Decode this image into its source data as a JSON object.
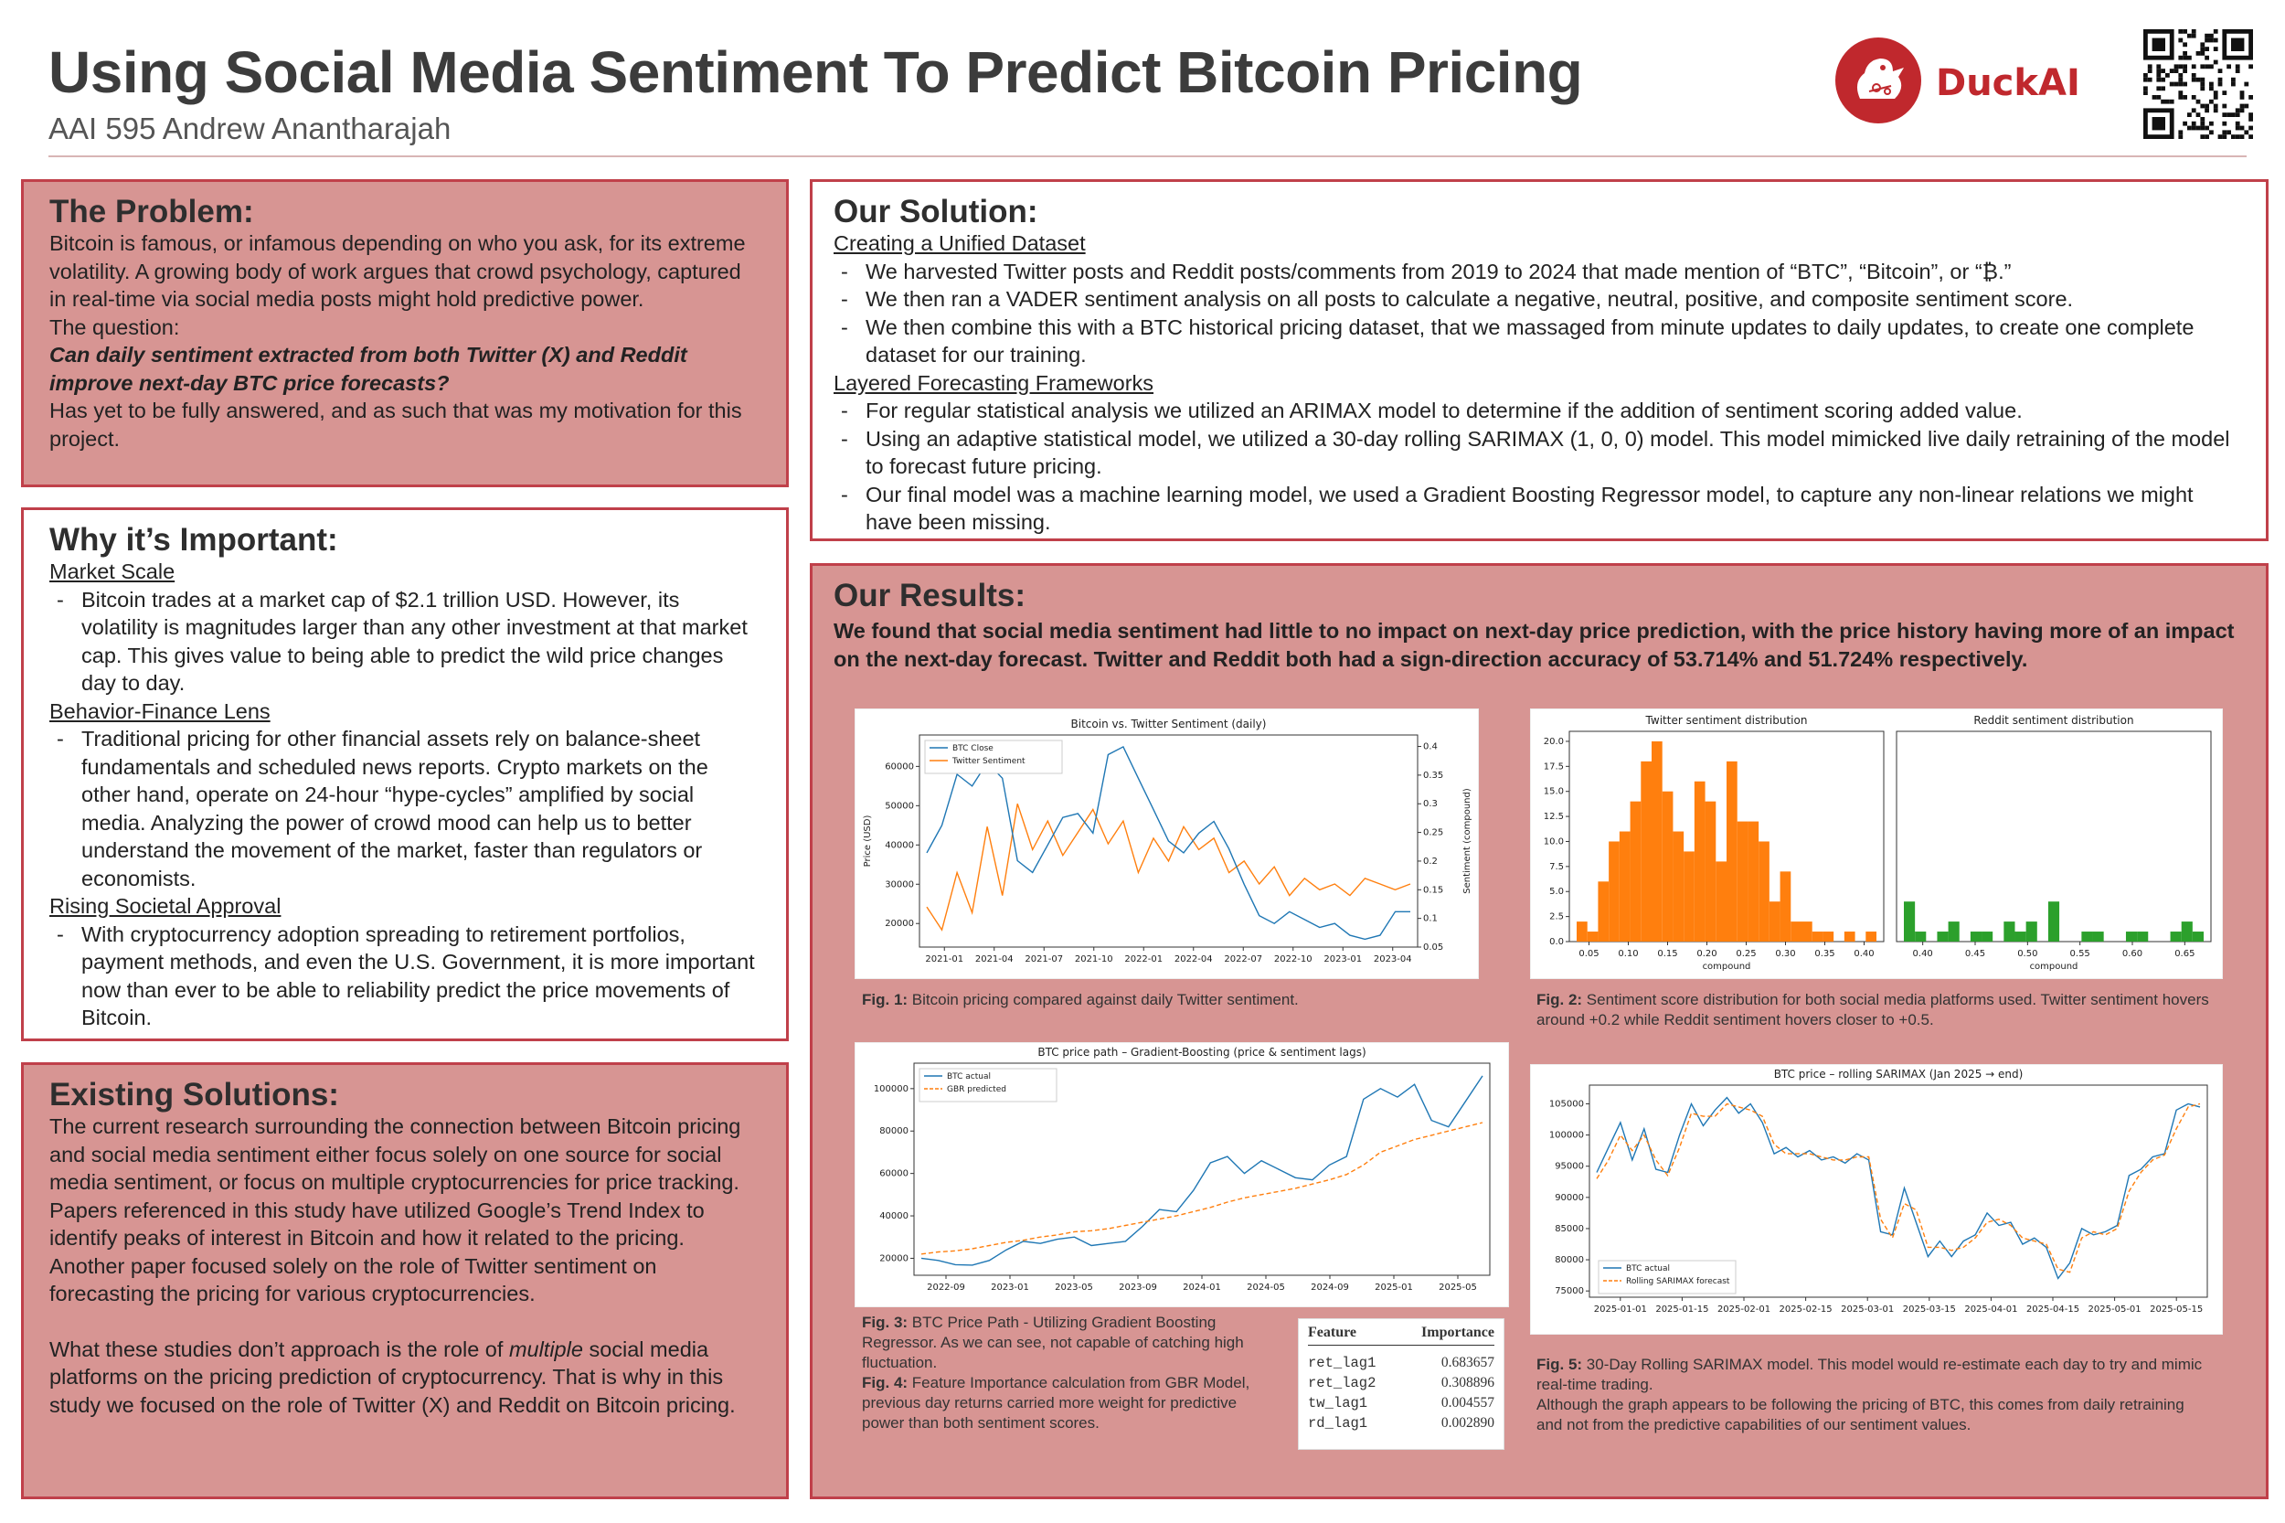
{
  "header": {
    "title": "Using Social Media Sentiment To Predict Bitcoin Pricing",
    "subtitle": "AAI 595 Andrew Anantharajah",
    "logo_text": "DuckAI"
  },
  "problem": {
    "title": "The Problem:",
    "p1": "Bitcoin is famous, or infamous depending on who you ask, for its extreme volatility. A growing body of work argues that crowd psychology, captured in real-time via social media posts might hold predictive power.",
    "p2": "The question:",
    "p3": "Can daily sentiment extracted from both Twitter (X) and Reddit improve next-day BTC price forecasts?",
    "p4": "Has yet to be fully answered, and as such that was my motivation for this project."
  },
  "important": {
    "title": "Why it’s Important:",
    "h1": "Market Scale",
    "b1": "Bitcoin trades at a market cap of $2.1 trillion USD. However, its volatility is magnitudes larger than any other investment at that market cap. This gives value to being able to predict the wild price changes day to day.",
    "h2": "Behavior-Finance Lens",
    "b2": "Traditional pricing for other financial assets rely on balance-sheet fundamentals and scheduled news reports. Crypto markets on the other hand, operate on 24-hour “hype-cycles” amplified by social media. Analyzing the power of crowd mood can help us to better understand the movement of the market, faster than regulators or economists.",
    "h3": "Rising Societal Approval",
    "b3": "With cryptocurrency adoption spreading to retirement portfolios, payment methods, and even the U.S. Government, it is more important now than ever to be able to reliability predict the price movements of Bitcoin."
  },
  "existing": {
    "title": "Existing Solutions:",
    "p1": "The current research surrounding the connection between Bitcoin pricing and social media sentiment either focus solely on one source for social media sentiment, or focus on multiple cryptocurrencies for price tracking.",
    "p2": "Papers referenced in this study have utilized Google’s Trend Index to identify peaks of interest in Bitcoin and how it related to the pricing. Another paper focused solely on the role of Twitter sentiment on forecasting the pricing for various cryptocurrencies.",
    "p3a": "What these studies don’t approach is the role of ",
    "p3b": "multiple",
    "p3c": " social media platforms on the pricing prediction of cryptocurrency. That is why in this study we focused on the role of Twitter (X) and Reddit on Bitcoin pricing."
  },
  "solution": {
    "title": "Our Solution:",
    "h1": "Creating a Unified Dataset",
    "b1": "We harvested Twitter posts and Reddit posts/comments from 2019 to 2024 that made mention of “BTC”, “Bitcoin”, or “₿.”",
    "b2": "We then ran a VADER sentiment analysis on all posts to calculate a negative, neutral, positive, and composite sentiment score.",
    "b3": "We then combine this with a BTC historical pricing dataset, that we massaged from minute updates to daily updates, to create one complete dataset for our training.",
    "h2": "Layered Forecasting Frameworks",
    "b4": "For regular statistical analysis we utilized an ARIMAX model to determine if the addition of sentiment scoring added value.",
    "b5": "Using an adaptive statistical model, we utilized a 30-day rolling SARIMAX (1, 0, 0) model. This model mimicked live daily retraining of the model to forecast future pricing.",
    "b6": "Our final model was a machine learning model, we used a Gradient Boosting Regressor model, to capture any non-linear relations we might have been missing."
  },
  "results": {
    "title": "Our Results:",
    "summary": "We found that social media sentiment had little to no impact on next-day price prediction, with the price history having more of an impact on the next-day forecast. Twitter and Reddit both had a sign-direction accuracy of 53.714% and 51.724% respectively."
  },
  "captions": {
    "f1_label": "Fig. 1:",
    "f1": " Bitcoin pricing compared against daily Twitter sentiment.",
    "f2_label": "Fig. 2:",
    "f2": " Sentiment score distribution for both social media platforms used. Twitter sentiment hovers around +0.2 while Reddit sentiment hovers closer to +0.5.",
    "f3_label": "Fig. 3:",
    "f3": "  BTC Price Path - Utilizing Gradient Boosting Regressor. As we can see, not capable of catching high fluctuation.",
    "f4_label": "Fig. 4:",
    "f4": " Feature Importance calculation from GBR Model, previous day returns carried more weight for predictive power than both sentiment scores.",
    "f5_label": "Fig. 5:",
    "f5": " 30-Day Rolling SARIMAX model. This model would re-estimate each day to try and mimic real-time trading.",
    "f5b": "Although the graph appears to be following the pricing of BTC, this comes from daily retraining and not from the predictive capabilities of our sentiment values."
  },
  "chart_data": [
    {
      "type": "line",
      "title": "Bitcoin vs. Twitter Sentiment (daily)",
      "ylabel": "Price (USD)",
      "y2label": "Sentiment (compound)",
      "x_ticks": [
        "2021-01",
        "2021-04",
        "2021-07",
        "2021-10",
        "2022-01",
        "2022-04",
        "2022-07",
        "2022-10",
        "2023-01",
        "2023-04"
      ],
      "y_ticks": [
        20000,
        30000,
        40000,
        50000,
        60000
      ],
      "y2_ticks": [
        0.05,
        0.1,
        0.15,
        0.2,
        0.25,
        0.3,
        0.35,
        0.4
      ],
      "series": [
        {
          "name": "BTC Close",
          "color": "#1f77b4",
          "values": [
            38000,
            45000,
            58000,
            55000,
            61000,
            57000,
            36000,
            33000,
            40000,
            47000,
            48000,
            43000,
            63000,
            65000,
            57000,
            49000,
            41000,
            38000,
            43000,
            46000,
            39000,
            30000,
            22000,
            20000,
            23000,
            21000,
            19000,
            20000,
            17000,
            16000,
            17000,
            23000,
            23000
          ]
        },
        {
          "name": "Twitter Sentiment",
          "color": "#ff7f0e",
          "values": [
            0.12,
            0.08,
            0.18,
            0.11,
            0.26,
            0.14,
            0.3,
            0.22,
            0.27,
            0.21,
            0.25,
            0.29,
            0.23,
            0.27,
            0.18,
            0.24,
            0.2,
            0.26,
            0.22,
            0.24,
            0.18,
            0.2,
            0.16,
            0.19,
            0.14,
            0.17,
            0.15,
            0.16,
            0.14,
            0.17,
            0.16,
            0.15,
            0.16
          ]
        }
      ]
    },
    {
      "type": "bar",
      "title": "Twitter sentiment distribution",
      "xlabel": "compound",
      "x_ticks": [
        "0.05",
        "0.10",
        "0.15",
        "0.20",
        "0.25",
        "0.30",
        "0.35",
        "0.40"
      ],
      "y_ticks": [
        "0.0",
        "2.5",
        "5.0",
        "7.5",
        "10.0",
        "12.5",
        "15.0",
        "17.5",
        "20.0"
      ],
      "color": "#ff7f0e",
      "values": [
        2,
        1,
        6,
        10,
        11,
        14,
        18,
        20,
        15,
        11,
        9,
        16,
        14,
        8,
        18,
        12,
        12,
        10,
        4,
        7,
        2,
        2,
        1,
        1,
        0,
        1,
        0,
        1
      ]
    },
    {
      "type": "bar",
      "title": "Reddit sentiment distribution",
      "xlabel": "compound",
      "x_ticks": [
        "0.40",
        "0.45",
        "0.50",
        "0.55",
        "0.60",
        "0.65"
      ],
      "color": "#2ca02c",
      "values": [
        4,
        1,
        0,
        1,
        2,
        0,
        1,
        1,
        0,
        2,
        1,
        2,
        0,
        4,
        0,
        0,
        1,
        1,
        0,
        0,
        1,
        1,
        0,
        0,
        1,
        2,
        1
      ]
    },
    {
      "type": "line",
      "title": "BTC price path – Gradient-Boosting (price & sentiment lags)",
      "x_ticks": [
        "2022-09",
        "2023-01",
        "2023-05",
        "2023-09",
        "2024-01",
        "2024-05",
        "2024-09",
        "2025-01",
        "2025-05"
      ],
      "y_ticks": [
        20000,
        40000,
        60000,
        80000,
        100000
      ],
      "series": [
        {
          "name": "BTC actual",
          "color": "#1f77b4",
          "values": [
            20000,
            19000,
            17000,
            16800,
            19000,
            24000,
            28000,
            27000,
            29000,
            30000,
            26000,
            27000,
            28000,
            35000,
            43000,
            42000,
            52000,
            65000,
            68000,
            60000,
            66000,
            62000,
            58000,
            57000,
            64000,
            68000,
            95000,
            100000,
            96000,
            102000,
            85000,
            82000,
            94000,
            106000
          ]
        },
        {
          "name": "GBR predicted",
          "color": "#ff7f0e",
          "dash": true,
          "values": [
            22000,
            23000,
            23500,
            24500,
            26000,
            27500,
            28500,
            30000,
            31000,
            32500,
            33000,
            34000,
            35500,
            37000,
            38500,
            40000,
            42000,
            44000,
            46500,
            48500,
            50000,
            51500,
            53000,
            55000,
            57000,
            59500,
            64000,
            70000,
            73000,
            76000,
            78000,
            80000,
            82000,
            84000
          ]
        }
      ]
    },
    {
      "type": "line",
      "title": "BTC price – rolling SARIMAX (Jan 2025 → end)",
      "x_ticks": [
        "2025-01-01",
        "2025-01-15",
        "2025-02-01",
        "2025-02-15",
        "2025-03-01",
        "2025-03-15",
        "2025-04-01",
        "2025-04-15",
        "2025-05-01",
        "2025-05-15"
      ],
      "y_ticks": [
        75000,
        80000,
        85000,
        90000,
        95000,
        100000,
        105000
      ],
      "series": [
        {
          "name": "BTC actual",
          "color": "#1f77b4",
          "values": [
            94000,
            98000,
            102000,
            96000,
            101000,
            94500,
            94000,
            100000,
            105000,
            101500,
            104000,
            106000,
            103500,
            105000,
            102000,
            97000,
            98000,
            96500,
            97500,
            96000,
            96500,
            95500,
            97000,
            96000,
            84500,
            84000,
            91500,
            86000,
            80500,
            83000,
            80500,
            83000,
            84000,
            87500,
            85500,
            86000,
            82500,
            83500,
            82000,
            77000,
            79500,
            85000,
            84000,
            84500,
            85500,
            93500,
            94500,
            96500,
            97000,
            104000,
            105000,
            104500
          ]
        },
        {
          "name": "Rolling SARIMAX forecast",
          "color": "#ff7f0e",
          "dash": true,
          "values": [
            93000,
            96000,
            100000,
            97500,
            100000,
            96000,
            93500,
            98000,
            103500,
            103000,
            103000,
            105000,
            104500,
            104000,
            103000,
            98500,
            97000,
            97000,
            97000,
            96500,
            96000,
            96000,
            96500,
            96500,
            86500,
            83500,
            89000,
            88000,
            82000,
            82000,
            81500,
            82000,
            83500,
            86000,
            86500,
            85500,
            83500,
            83000,
            82500,
            78500,
            78000,
            83500,
            84500,
            84000,
            85000,
            91000,
            94000,
            96000,
            96800,
            101000,
            104500,
            105000
          ]
        }
      ]
    }
  ],
  "feature_table": {
    "h1": "Feature",
    "h2": "Importance",
    "rows": [
      [
        "ret_lag1",
        "0.683657"
      ],
      [
        "ret_lag2",
        "0.308896"
      ],
      [
        "tw_lag1",
        "0.004557"
      ],
      [
        "rd_lag1",
        "0.002890"
      ]
    ]
  }
}
